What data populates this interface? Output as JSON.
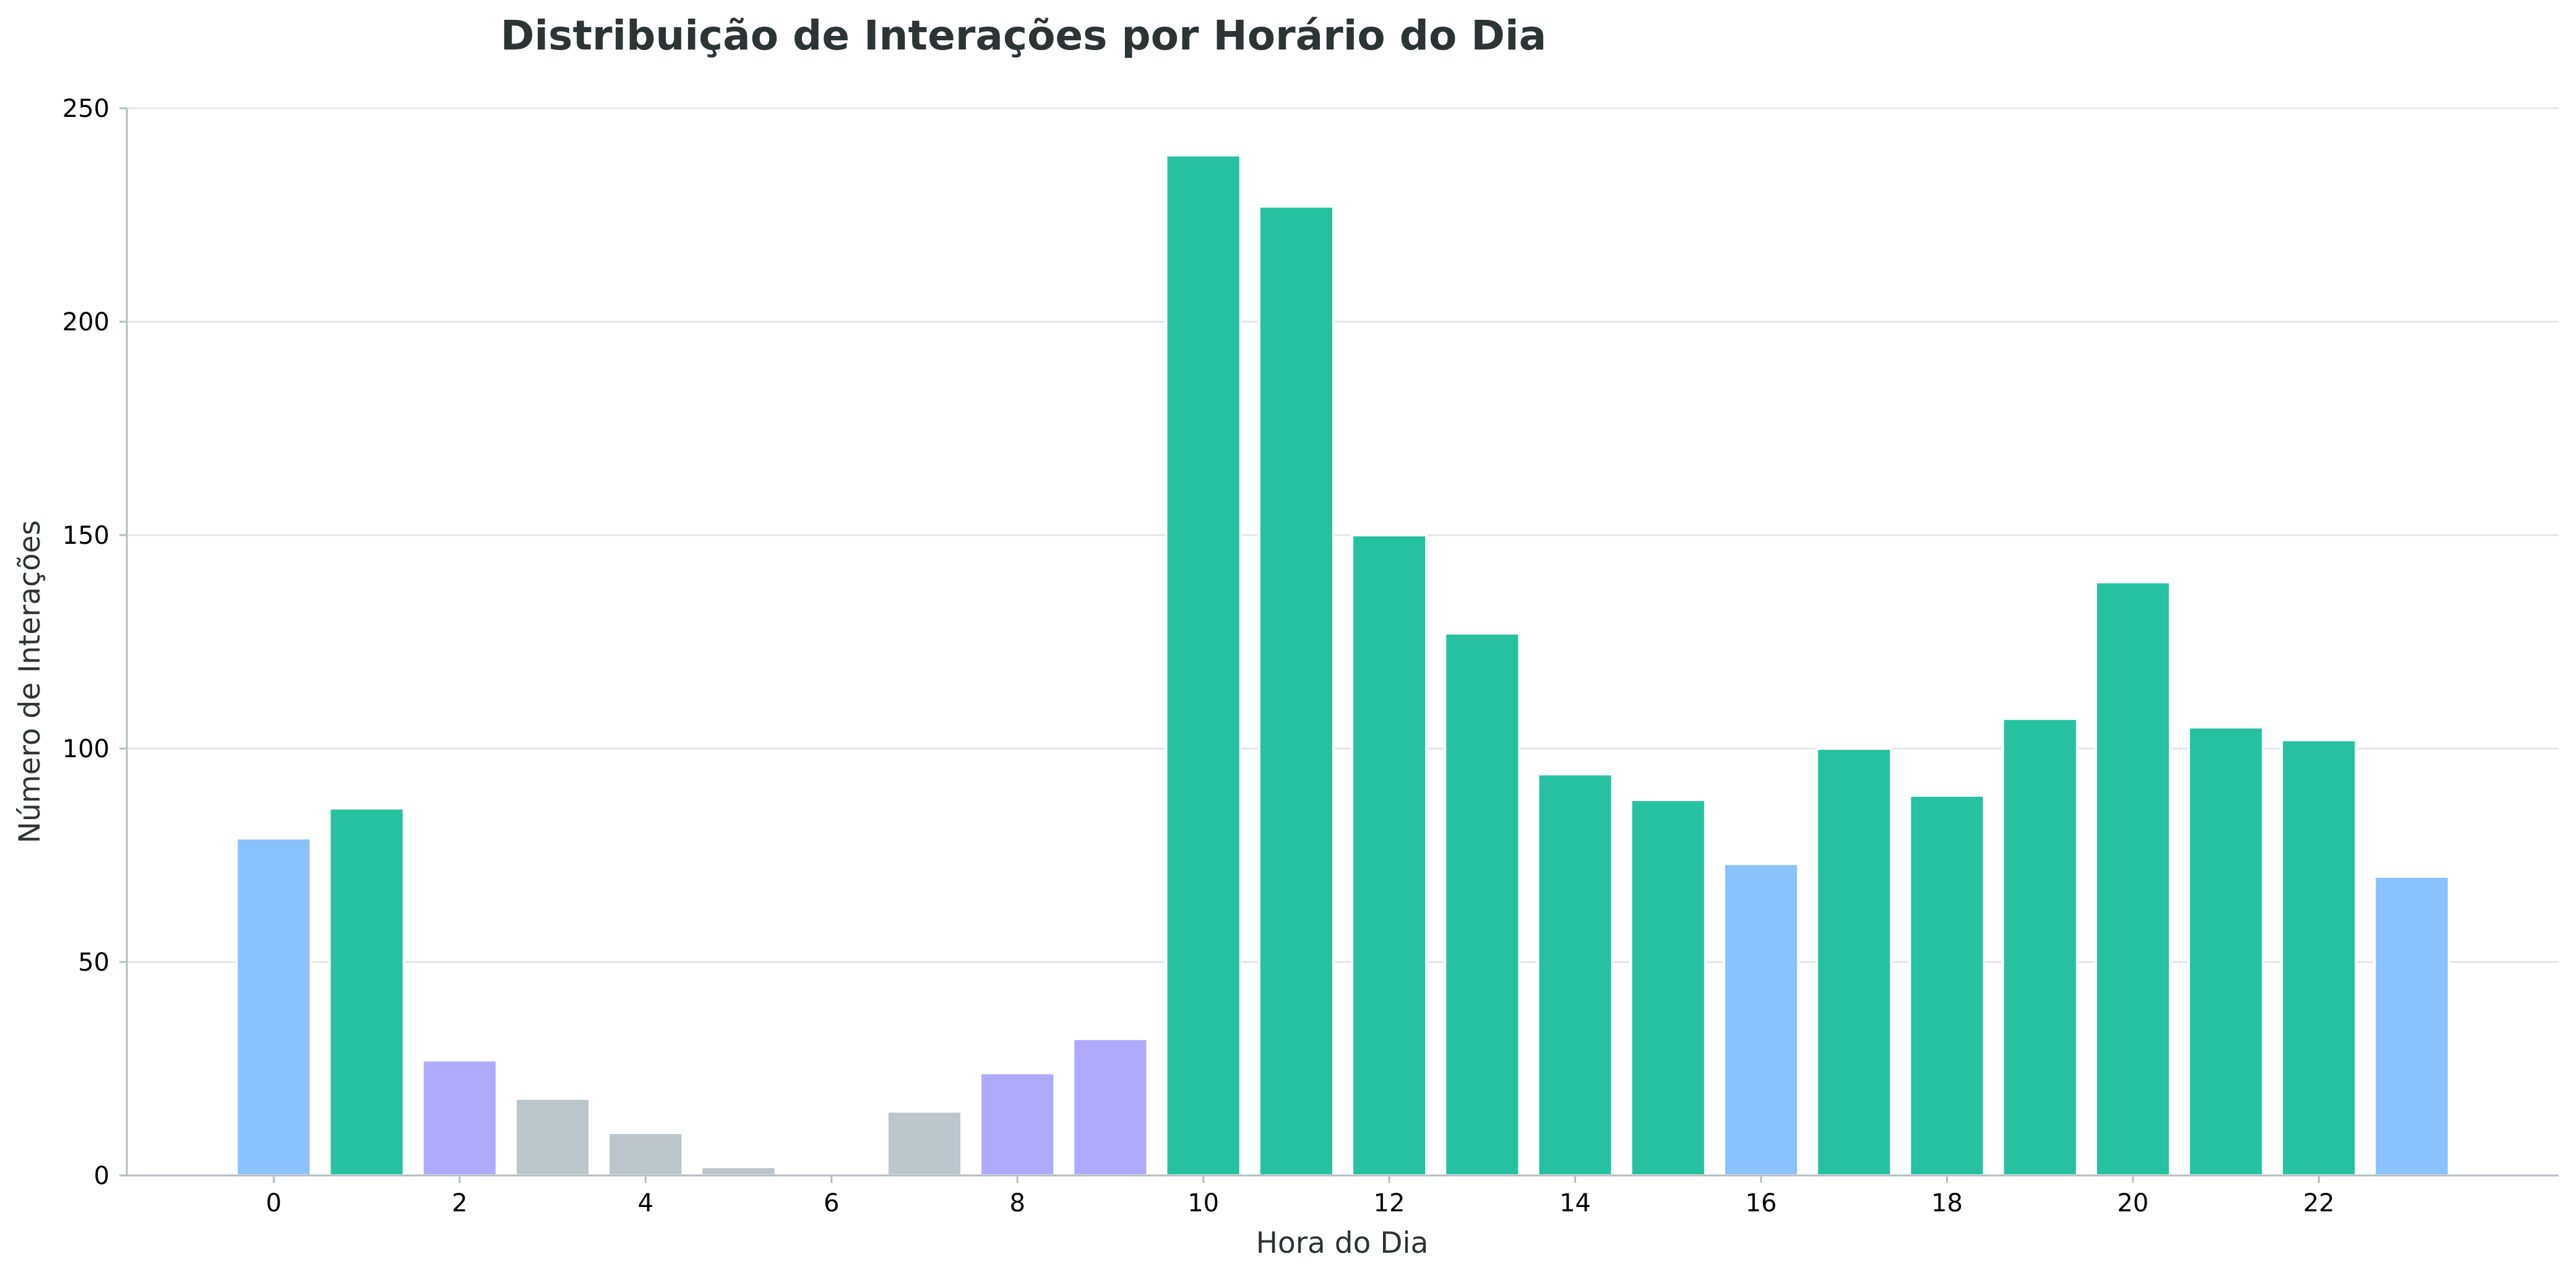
{
  "chart_data": {
    "type": "bar",
    "title": "Distribuição de Interações por Horário do Dia",
    "xlabel": "Hora do Dia",
    "ylabel": "Número de Interações",
    "x": [
      0,
      1,
      2,
      3,
      4,
      5,
      6,
      7,
      8,
      9,
      10,
      11,
      12,
      13,
      14,
      15,
      16,
      17,
      18,
      19,
      20,
      21,
      22,
      23
    ],
    "values": [
      79,
      86,
      27,
      18,
      10,
      2,
      0,
      15,
      24,
      32,
      239,
      227,
      150,
      127,
      94,
      88,
      73,
      100,
      89,
      107,
      139,
      105,
      102,
      70
    ],
    "bar_colors": [
      "#89c2fe",
      "#26c2a0",
      "#b0aafd",
      "#bdc6cb",
      "#bdc6cb",
      "#bdc6cb",
      "#bdc6cb",
      "#bdc6cb",
      "#b0aafd",
      "#b0aafd",
      "#26c2a0",
      "#26c2a0",
      "#26c2a0",
      "#26c2a0",
      "#26c2a0",
      "#26c2a0",
      "#89c2fe",
      "#26c2a0",
      "#26c2a0",
      "#26c2a0",
      "#26c2a0",
      "#26c2a0",
      "#26c2a0",
      "#89c2fe"
    ],
    "x_ticks": [
      0,
      2,
      4,
      6,
      8,
      10,
      12,
      14,
      16,
      18,
      20,
      22
    ],
    "xlim": [
      -1.58,
      24.58
    ],
    "y_ticks": [
      0,
      50,
      100,
      150,
      200,
      250
    ],
    "ylim": [
      0,
      250
    ],
    "grid": "horizontal"
  }
}
